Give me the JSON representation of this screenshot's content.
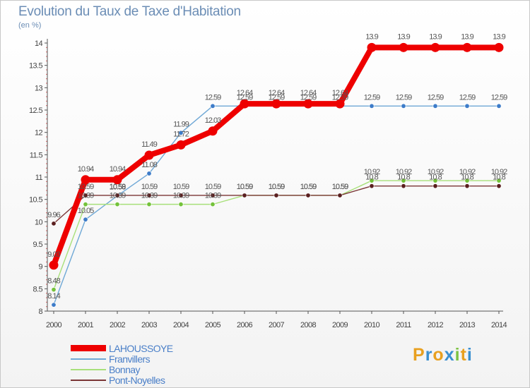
{
  "colors": {
    "title": "#6b8db5",
    "legend_text": "#4a7fc8"
  },
  "chart_data": {
    "type": "line",
    "title": "Evolution du Taux de Taxe d'Habitation",
    "ylabel": "(en %)",
    "x": [
      "2000",
      "2001",
      "2002",
      "2003",
      "2004",
      "2005",
      "2006",
      "2007",
      "2008",
      "2009",
      "2010",
      "2011",
      "2012",
      "2013",
      "2014"
    ],
    "ylim": [
      8,
      14
    ],
    "yticks": [
      "8",
      "8.5",
      "9",
      "9.5",
      "10",
      "10.5",
      "11",
      "11.5",
      "12",
      "12.5",
      "13",
      "13.5",
      "14"
    ],
    "series": [
      {
        "name": "Franvillers",
        "color": "#6fa8d6",
        "marker": "#3d7cc9",
        "values": [
          8.14,
          10.05,
          10.58,
          11.08,
          11.99,
          12.59,
          12.59,
          12.59,
          12.59,
          12.59,
          12.59,
          12.59,
          12.59,
          12.59,
          12.59
        ],
        "labels": [
          "8.14",
          "10.05",
          "10.58",
          "11.08",
          "11.99",
          "12.59",
          "12.59",
          "12.59",
          "12.59",
          "12.59",
          "12.59",
          "12.59",
          "12.59",
          "12.59",
          "12.59"
        ]
      },
      {
        "name": "Bonnay",
        "color": "#a8e07a",
        "marker": "#74c23a",
        "values": [
          8.48,
          10.39,
          10.39,
          10.39,
          10.39,
          10.39,
          10.59,
          10.59,
          10.59,
          10.59,
          10.92,
          10.92,
          10.92,
          10.92,
          10.92
        ],
        "labels": [
          "8.48",
          "10.39",
          "10.39",
          "10.39",
          "10.39",
          "10.39",
          "10.59",
          "10.59",
          "10.59",
          "10.59",
          "10.92",
          "10.92",
          "10.92",
          "10.92",
          "10.92"
        ]
      },
      {
        "name": "Pont-Noyelles",
        "color": "#7a3535",
        "marker": "#5a1f1f",
        "values": [
          9.96,
          10.59,
          10.59,
          10.59,
          10.59,
          10.59,
          10.59,
          10.59,
          10.59,
          10.59,
          10.8,
          10.8,
          10.8,
          10.8,
          10.8
        ],
        "labels": [
          "9.96",
          "10.59",
          "10.59",
          "10.59",
          "10.59",
          "10.59",
          "10.59",
          "10.59",
          "10.59",
          "10.59",
          "10.8",
          "10.8",
          "10.8",
          "10.8",
          "10.8"
        ]
      },
      {
        "name": "LAHOUSSOYE",
        "color": "#ee0000",
        "marker": "#ee0000",
        "values": [
          9.03,
          10.94,
          10.94,
          11.49,
          11.72,
          12.03,
          12.64,
          12.64,
          12.64,
          12.64,
          13.9,
          13.9,
          13.9,
          13.9,
          13.9
        ],
        "labels": [
          "9.03",
          "10.94",
          "10.94",
          "11.49",
          "11.72",
          "12.03",
          "12.64",
          "12.64",
          "12.64",
          "12.64",
          "13.9",
          "13.9",
          "13.9",
          "13.9",
          "13.9"
        ]
      }
    ]
  },
  "legend": [
    {
      "name": "LAHOUSSOYE",
      "color": "#ee0000"
    },
    {
      "name": "Franvillers",
      "color": "#6fa8d6"
    },
    {
      "name": "Bonnay",
      "color": "#a8e07a"
    },
    {
      "name": "Pont-Noyelles",
      "color": "#7a3535"
    }
  ],
  "logo": {
    "text": "Proxiti",
    "letters": [
      "P",
      "r",
      "o",
      "x",
      "i",
      "t",
      "i"
    ],
    "colors": [
      "#e8a020",
      "#3a8fd0",
      "#e8a020",
      "#3a8fd0",
      "#7cc242",
      "#e8a020",
      "#3a8fd0"
    ]
  }
}
